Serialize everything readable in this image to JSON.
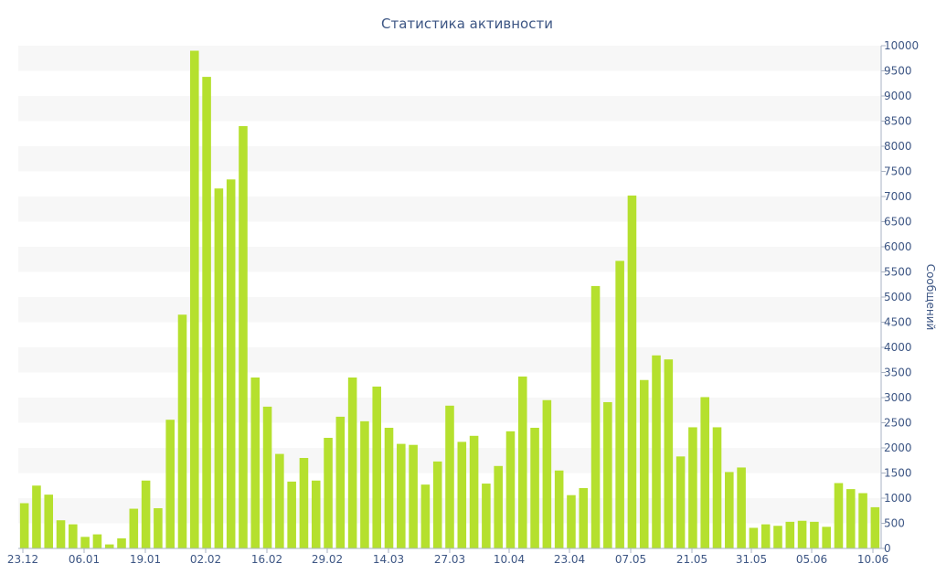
{
  "chart_data": {
    "type": "bar",
    "title": "Статистика активности",
    "ylabel": "Сообщений",
    "ylim": [
      0,
      10000
    ],
    "ytick_step": 500,
    "y_axis_position": "right",
    "grid": "alternating horizontal bands",
    "x_tick_labels": [
      "23.12",
      "06.01",
      "19.01",
      "02.02",
      "16.02",
      "29.02",
      "14.03",
      "27.03",
      "10.04",
      "23.04",
      "07.05",
      "21.05",
      "31.05",
      "05.06",
      "10.06"
    ],
    "bar_color": "#b5e02e",
    "values": [
      900,
      1250,
      1070,
      560,
      480,
      230,
      280,
      80,
      200,
      790,
      1350,
      800,
      2560,
      4650,
      9900,
      9380,
      7160,
      7340,
      8400,
      3400,
      2820,
      1880,
      1330,
      1800,
      1350,
      2200,
      2620,
      3400,
      2530,
      3220,
      2400,
      2080,
      2060,
      1270,
      1730,
      2840,
      2120,
      2240,
      1290,
      1640,
      2330,
      3420,
      2400,
      2950,
      1550,
      1060,
      1200,
      5220,
      2910,
      5720,
      7020,
      3350,
      3840,
      3760,
      1830,
      2410,
      3010,
      2410,
      1520,
      1610,
      410,
      480,
      450,
      530,
      550,
      530,
      430,
      1300,
      1180,
      1100,
      820
    ]
  }
}
